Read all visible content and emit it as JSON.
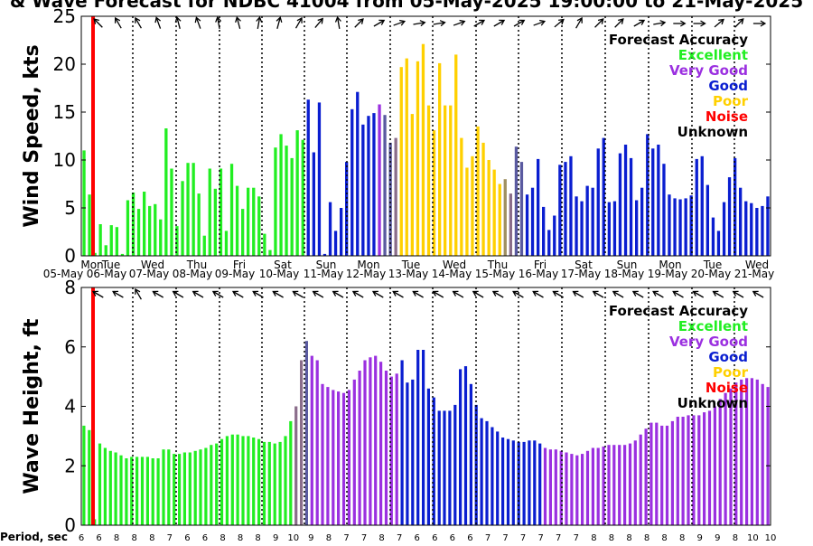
{
  "title": "& Wave Forecast for NDBC 41004 from 05-May-2025 19:00:00 to 21-May-2025",
  "period_label": "Period, sec",
  "periods": [
    "6",
    "6",
    "8",
    "8",
    "8",
    "7",
    "6",
    "6",
    "8",
    "8",
    "8",
    "9",
    "10",
    "9",
    "8",
    "7",
    "7",
    "8",
    "7",
    "6",
    "6",
    "6",
    "6",
    "7",
    "7",
    "7",
    "7",
    "7",
    "7",
    "8",
    "8",
    "8",
    "8",
    "8",
    "8",
    "9",
    "9",
    "8",
    "10",
    "10"
  ],
  "chart_data": [
    {
      "type": "bar",
      "title": "",
      "ylabel": "Wind Speed, kts",
      "ylim": [
        0,
        25
      ],
      "yticks": [
        0,
        5,
        10,
        15,
        20,
        25
      ],
      "day_labels": [
        "Mon",
        "Tue",
        "Wed",
        "Thu",
        "Fri",
        "Sat",
        "Sun",
        "Mon",
        "Tue",
        "Wed",
        "Thu",
        "Fri",
        "Sat",
        "Sun",
        "Mon",
        "Tue",
        "Wed"
      ],
      "date_labels": [
        "05-May",
        "06-May",
        "07-May",
        "08-May",
        "09-May",
        "10-May",
        "11-May",
        "12-May",
        "13-May",
        "14-May",
        "15-May",
        "16-May",
        "17-May",
        "18-May",
        "19-May",
        "20-May",
        "21-May"
      ],
      "values": [
        11,
        6.4,
        0.3,
        3.3,
        1.1,
        3.2,
        3.0,
        0.2,
        5.8,
        6.6,
        4.9,
        6.7,
        5.2,
        5.4,
        3.8,
        13.3,
        9.1,
        3.1,
        7.8,
        9.7,
        9.7,
        6.5,
        2.1,
        9.1,
        7.0,
        9.1,
        2.6,
        9.6,
        7.3,
        4.9,
        7.1,
        7.1,
        6.2,
        2.3,
        0.6,
        11.3,
        12.7,
        11.5,
        10.2,
        13.1,
        12.1,
        16.3,
        10.8,
        16.0,
        0.2,
        5.6,
        2.6,
        5.0,
        9.8,
        15.3,
        17.1,
        13.7,
        14.6,
        14.9,
        15.8,
        14.7,
        11.8,
        12.3,
        19.7,
        20.6,
        14.8,
        20.3,
        22.1,
        15.7,
        13.1,
        20.1,
        15.7,
        15.7,
        21.0,
        12.3,
        9.2,
        10.4,
        13.5,
        11.8,
        10.0,
        9.0,
        7.5,
        8.0,
        6.5,
        11.4,
        9.8,
        6.4,
        7.1,
        10.1,
        5.1,
        2.7,
        4.2,
        9.5,
        9.8,
        10.4,
        6.2,
        5.7,
        7.3,
        7.1,
        11.2,
        12.3,
        5.6,
        5.7,
        10.7,
        11.6,
        10.2,
        5.8,
        7.1,
        12.7,
        11.2,
        11.6,
        9.6,
        6.4,
        6.0,
        5.9,
        6.0,
        6.3,
        10.1,
        10.4,
        7.4,
        4.0,
        2.6,
        5.6,
        8.2,
        10.2,
        7.1,
        5.7,
        5.5,
        5.0,
        5.2,
        6.2
      ],
      "categories_colors": [
        "green",
        "green",
        "green",
        "green",
        "green",
        "green",
        "green",
        "green",
        "green",
        "green",
        "green",
        "green",
        "green",
        "green",
        "green",
        "green",
        "green",
        "green",
        "green",
        "green",
        "green",
        "green",
        "green",
        "green",
        "green",
        "green",
        "green",
        "green",
        "green",
        "green",
        "green",
        "green",
        "green",
        "green",
        "green",
        "green",
        "green",
        "green",
        "green",
        "green",
        "green",
        "blue",
        "blue",
        "blue",
        "blue",
        "blue",
        "blue",
        "blue",
        "blue",
        "blue",
        "blue",
        "blue",
        "blue",
        "blue",
        "violet",
        "slate",
        "slate",
        "gray",
        "gold",
        "gold",
        "gold",
        "gold",
        "gold",
        "gold",
        "gold",
        "gold",
        "gold",
        "gold",
        "gold",
        "gold",
        "gold",
        "gold",
        "gold",
        "gold",
        "gold",
        "gold",
        "gold",
        "olive",
        "gray",
        "slate",
        "slate",
        "blue",
        "blue",
        "blue",
        "blue",
        "blue",
        "blue",
        "blue",
        "blue",
        "blue",
        "blue",
        "blue",
        "blue",
        "blue",
        "blue",
        "blue",
        "blue",
        "blue",
        "blue",
        "blue",
        "blue",
        "blue",
        "blue",
        "blue",
        "blue",
        "blue",
        "blue",
        "blue",
        "blue",
        "blue",
        "blue",
        "blue",
        "blue",
        "blue",
        "blue",
        "blue",
        "blue",
        "blue",
        "blue",
        "blue",
        "blue",
        "blue",
        "blue",
        "blue",
        "blue",
        "blue"
      ],
      "legend": {
        "title": "Forecast Accuracy",
        "items": [
          {
            "label": "Excellent",
            "color": "#22ee22"
          },
          {
            "label": "Very Good",
            "color": "#9b30e0"
          },
          {
            "label": "Good",
            "color": "#0a1ed0"
          },
          {
            "label": "Poor",
            "color": "#ffd000"
          },
          {
            "label": "Noise",
            "color": "#ff0000"
          },
          {
            "label": "Unknown",
            "color": "#000000"
          }
        ]
      },
      "noise_marker_index": 3,
      "arrows_deg": [
        315,
        330,
        330,
        340,
        345,
        340,
        350,
        345,
        10,
        15,
        30,
        40,
        350,
        45,
        60,
        70,
        80,
        80,
        70,
        60,
        60,
        60,
        70,
        50,
        30,
        45,
        45,
        60,
        80,
        90,
        90,
        50,
        45,
        90
      ]
    },
    {
      "type": "bar",
      "title": "",
      "ylabel": "Wave Height, ft",
      "ylim": [
        0,
        8
      ],
      "yticks": [
        0,
        2,
        4,
        6,
        8
      ],
      "values": [
        3.35,
        3.2,
        0.2,
        2.75,
        2.6,
        2.5,
        2.45,
        2.35,
        2.25,
        2.3,
        2.3,
        2.3,
        2.3,
        2.25,
        2.25,
        2.55,
        2.55,
        2.4,
        2.4,
        2.45,
        2.45,
        2.5,
        2.55,
        2.6,
        2.7,
        2.75,
        2.9,
        3.0,
        3.05,
        3.05,
        3.0,
        3.0,
        2.95,
        2.9,
        2.8,
        2.8,
        2.75,
        2.8,
        3.0,
        3.5,
        4.0,
        5.55,
        6.2,
        5.7,
        5.55,
        4.75,
        4.65,
        4.55,
        4.5,
        4.45,
        4.55,
        4.9,
        5.2,
        5.55,
        5.65,
        5.7,
        5.5,
        5.2,
        5.0,
        5.1,
        5.55,
        4.8,
        4.9,
        5.9,
        5.9,
        4.6,
        4.3,
        3.85,
        3.85,
        3.85,
        4.05,
        5.25,
        5.35,
        4.75,
        4.05,
        3.6,
        3.5,
        3.3,
        3.15,
        2.95,
        2.9,
        2.85,
        2.8,
        2.8,
        2.85,
        2.85,
        2.75,
        2.6,
        2.55,
        2.55,
        2.5,
        2.45,
        2.4,
        2.35,
        2.4,
        2.5,
        2.6,
        2.6,
        2.65,
        2.7,
        2.7,
        2.7,
        2.7,
        2.75,
        2.85,
        3.05,
        3.25,
        3.45,
        3.45,
        3.35,
        3.35,
        3.5,
        3.65,
        3.65,
        3.7,
        3.7,
        3.7,
        3.8,
        3.85,
        4.0,
        4.25,
        4.45,
        4.6,
        4.8,
        4.9,
        4.95,
        4.95,
        4.9,
        4.75,
        4.65
      ],
      "categories_colors": [
        "green",
        "green",
        "green",
        "green",
        "green",
        "green",
        "green",
        "green",
        "green",
        "green",
        "green",
        "green",
        "green",
        "green",
        "green",
        "green",
        "green",
        "green",
        "green",
        "green",
        "green",
        "green",
        "green",
        "green",
        "green",
        "green",
        "green",
        "green",
        "green",
        "green",
        "green",
        "green",
        "green",
        "green",
        "green",
        "green",
        "green",
        "green",
        "green",
        "green",
        "gray",
        "gray",
        "slate",
        "violet",
        "violet",
        "violet",
        "violet",
        "violet",
        "violet",
        "violet",
        "violet",
        "violet",
        "violet",
        "violet",
        "violet",
        "violet",
        "violet",
        "violet",
        "violet",
        "violet",
        "blue",
        "blue",
        "blue",
        "blue",
        "blue",
        "blue",
        "blue",
        "blue",
        "blue",
        "blue",
        "blue",
        "blue",
        "blue",
        "blue",
        "blue",
        "blue",
        "blue",
        "blue",
        "blue",
        "blue",
        "blue",
        "blue",
        "blue",
        "blue",
        "blue",
        "blue",
        "blue",
        "violet",
        "violet",
        "violet",
        "violet",
        "violet",
        "violet",
        "violet",
        "violet",
        "violet",
        "violet",
        "violet",
        "violet",
        "violet",
        "violet",
        "violet",
        "violet",
        "violet",
        "violet",
        "violet",
        "violet",
        "violet",
        "violet",
        "violet",
        "violet",
        "violet",
        "violet",
        "violet",
        "violet",
        "violet",
        "violet",
        "violet",
        "violet",
        "violet",
        "violet",
        "violet",
        "violet",
        "violet",
        "violet",
        "violet",
        "violet",
        "violet",
        "violet",
        "violet"
      ],
      "legend": {
        "title": "Forecast Accuracy",
        "items": [
          {
            "label": "Excellent",
            "color": "#22ee22"
          },
          {
            "label": "Very Good",
            "color": "#9b30e0"
          },
          {
            "label": "Good",
            "color": "#0a1ed0"
          },
          {
            "label": "Poor",
            "color": "#ffd000"
          },
          {
            "label": "Noise",
            "color": "#ff0000"
          },
          {
            "label": "Unknown",
            "color": "#000000"
          }
        ]
      },
      "arrows_deg": [
        300,
        300,
        330,
        300,
        300,
        300,
        300,
        300,
        300,
        300,
        300,
        300,
        300,
        300,
        300,
        300,
        300,
        300,
        300,
        300,
        300,
        300,
        300,
        300,
        300,
        300,
        300,
        300,
        300,
        300,
        300,
        300,
        300,
        300
      ]
    }
  ]
}
